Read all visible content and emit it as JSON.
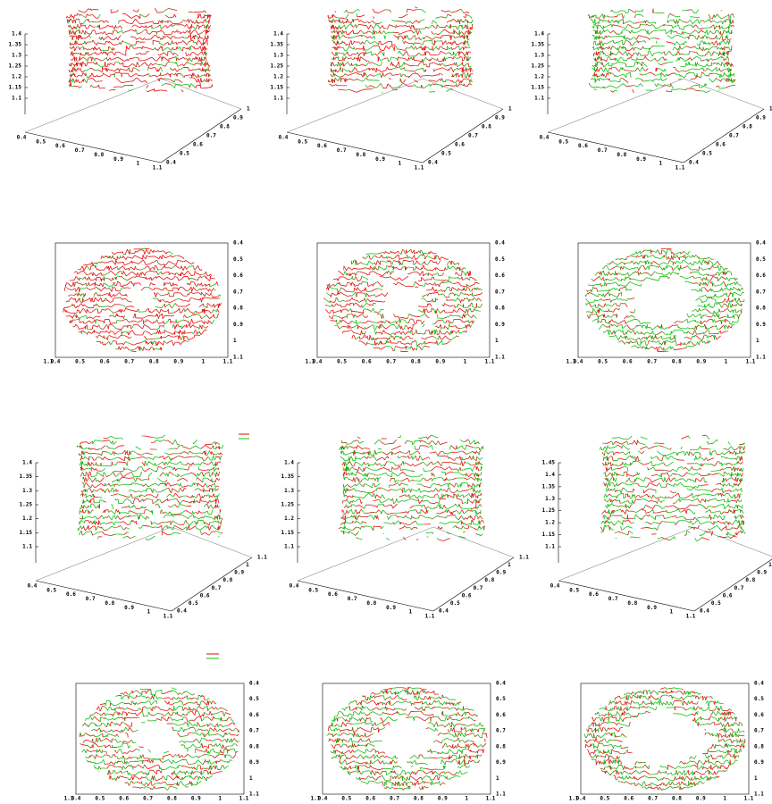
{
  "panels": [
    {
      "view": "3d",
      "zticks": [
        "1.4",
        "1.35",
        "1.3",
        "1.25",
        "1.2",
        "1.15",
        "1.1"
      ],
      "xticks": [
        "0.4",
        "0.5",
        "0.6",
        "0.7",
        "0.8",
        "0.9",
        "1",
        "1.1"
      ],
      "yticks": [
        "0.4",
        "0.5",
        "0.6",
        "0.7",
        "0.8",
        "0.9",
        "1"
      ]
    },
    {
      "view": "3d",
      "zticks": [
        "1.4",
        "1.35",
        "1.3",
        "1.25",
        "1.2",
        "1.15",
        "1.1"
      ],
      "xticks": [
        "0.4",
        "0.5",
        "0.6",
        "0.7",
        "0.8",
        "0.9",
        "1",
        "1.1"
      ],
      "yticks": [
        "0.4",
        "0.5",
        "0.6",
        "0.7",
        "0.8",
        "0.9",
        "1"
      ]
    },
    {
      "view": "3d",
      "zticks": [
        "1.4",
        "1.35",
        "1.3",
        "1.25",
        "1.2",
        "1.15",
        "1.1"
      ],
      "xticks": [
        "0.4",
        "0.5",
        "0.6",
        "0.7",
        "0.8",
        "0.9",
        "1",
        "1.1"
      ],
      "yticks": [
        "0.4",
        "0.5",
        "0.6",
        "0.7",
        "0.8",
        "0.9",
        "1"
      ]
    },
    {
      "view": "top",
      "rticks": [
        "0.4",
        "0.5",
        "0.6",
        "0.7",
        "0.8",
        "0.9",
        "1",
        "1.1"
      ],
      "xticks": [
        "1.1",
        "0.4",
        "0.5",
        "0.6",
        "0.7",
        "0.8",
        "0.9",
        "1",
        "1.1"
      ]
    },
    {
      "view": "top",
      "rticks": [
        "0.4",
        "0.5",
        "0.6",
        "0.7",
        "0.8",
        "0.9",
        "1",
        "1.1"
      ],
      "xticks": [
        "1.1",
        "0.4",
        "0.5",
        "0.6",
        "0.7",
        "0.8",
        "0.9",
        "1",
        "1.1"
      ]
    },
    {
      "view": "top",
      "rticks": [
        "0.4",
        "0.5",
        "0.6",
        "0.7",
        "0.8",
        "0.9",
        "1",
        "1.1"
      ],
      "xticks": [
        "1.1",
        "0.4",
        "0.5",
        "0.6",
        "0.7",
        "0.8",
        "0.9",
        "1",
        "1.1"
      ]
    },
    {
      "view": "3d",
      "zticks": [
        "1.4",
        "1.35",
        "1.3",
        "1.25",
        "1.2",
        "1.15",
        "1.1"
      ],
      "xticks": [
        "0.4",
        "0.5",
        "0.6",
        "0.7",
        "0.8",
        "0.9",
        "1",
        "1.1"
      ],
      "yticks": [
        "0.4",
        "0.5",
        "0.6",
        "0.7",
        "0.8",
        "0.9",
        "1",
        "1.1"
      ]
    },
    {
      "view": "3d",
      "zticks": [
        "1.4",
        "1.35",
        "1.3",
        "1.25",
        "1.2",
        "1.15",
        "1.1"
      ],
      "xticks": [
        "0.4",
        "0.5",
        "0.6",
        "0.7",
        "0.8",
        "0.9",
        "1",
        "1.1"
      ],
      "yticks": [
        "0.4",
        "0.5",
        "0.6",
        "0.7",
        "0.8",
        "0.9",
        "1",
        "1.1"
      ]
    },
    {
      "view": "3d",
      "zticks": [
        "1.45",
        "1.4",
        "1.35",
        "1.3",
        "1.25",
        "1.2",
        "1.15",
        "1.1"
      ],
      "xticks": [
        "0.4",
        "0.5",
        "0.6",
        "0.7",
        "0.8",
        "0.9",
        "1",
        "1.1"
      ],
      "yticks": [
        "0.4",
        "0.5",
        "0.6",
        "0.7",
        "0.8",
        "0.9",
        "1",
        "1.1"
      ]
    },
    {
      "view": "top",
      "rticks": [
        "0.4",
        "0.5",
        "0.6",
        "0.7",
        "0.8",
        "0.9",
        "1",
        "1.1"
      ],
      "xticks": [
        "1.1",
        "0.4",
        "0.5",
        "0.6",
        "0.7",
        "0.8",
        "0.9",
        "1",
        "1.1"
      ]
    },
    {
      "view": "top",
      "rticks": [
        "0.4",
        "0.5",
        "0.6",
        "0.7",
        "0.8",
        "0.9",
        "1",
        "1.1"
      ],
      "xticks": [
        "1.1",
        "0.4",
        "0.5",
        "0.6",
        "0.7",
        "0.8",
        "0.9",
        "1",
        "1.1"
      ]
    },
    {
      "view": "top",
      "rticks": [
        "0.4",
        "0.5",
        "0.6",
        "0.7",
        "0.8",
        "0.9",
        "1",
        "1.1"
      ],
      "xticks": [
        "1.1",
        "0.4",
        "0.5",
        "0.6",
        "0.7",
        "0.8",
        "0.9",
        "1",
        "1.1"
      ]
    }
  ]
}
